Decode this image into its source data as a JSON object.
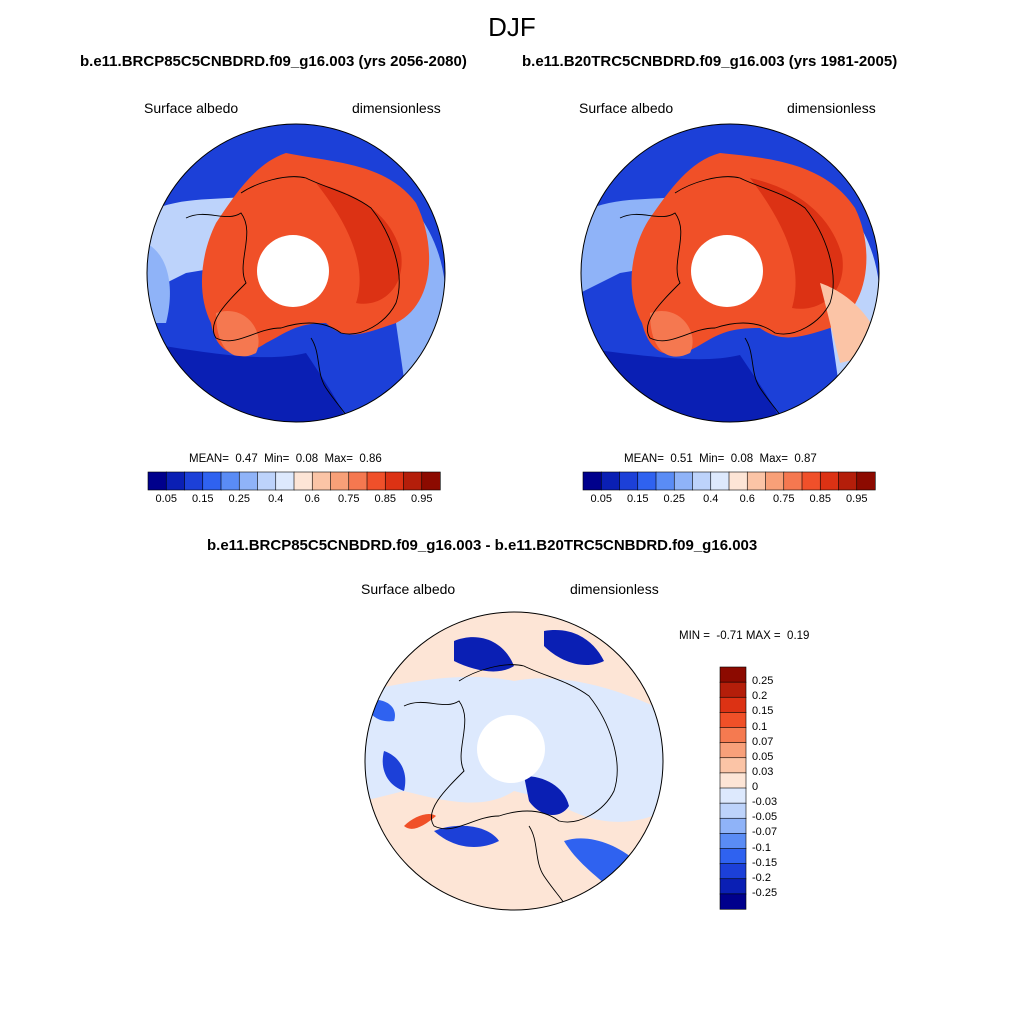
{
  "figure": {
    "season": "DJF"
  },
  "panel_left": {
    "title": "b.e11.BRCP85C5CNBDRD.f09_g16.003 (yrs 2056-2080)",
    "variable": "Surface albedo",
    "units": "dimensionless",
    "stats": {
      "mean_label": "MEAN=",
      "mean": "0.47",
      "min_label": "Min=",
      "min": "0.08",
      "max_label": "Max=",
      "max": "0.86"
    }
  },
  "panel_right": {
    "title": "b.e11.B20TRC5CNBDRD.f09_g16.003 (yrs 1981-2005)",
    "variable": "Surface albedo",
    "units": "dimensionless",
    "stats": {
      "mean_label": "MEAN=",
      "mean": "0.51",
      "min_label": "Min=",
      "min": "0.08",
      "max_label": "Max=",
      "max": "0.87"
    }
  },
  "panel_diff": {
    "title": "b.e11.BRCP85C5CNBDRD.f09_g16.003 - b.e11.B20TRC5CNBDRD.f09_g16.003",
    "variable": "Surface albedo",
    "units": "dimensionless",
    "stats": {
      "min_label": "MIN =",
      "min": "-0.71",
      "max_label": "MAX =",
      "max": "0.19"
    }
  },
  "colorbar_abs": {
    "ticks": [
      "0.05",
      "0.15",
      "0.25",
      "0.4",
      "0.6",
      "0.75",
      "0.85",
      "0.95"
    ],
    "colors": [
      "#00008c",
      "#0a1fb4",
      "#1c40d8",
      "#2f62f0",
      "#5a8cf5",
      "#8fb3f8",
      "#bdd3fb",
      "#dde9fd",
      "#fde5d6",
      "#fbc4a6",
      "#f8a078",
      "#f57850",
      "#f0502a",
      "#dc3214",
      "#b41e0a",
      "#8c0a00"
    ]
  },
  "colorbar_diff": {
    "ticks": [
      "0.25",
      "0.2",
      "0.15",
      "0.1",
      "0.07",
      "0.05",
      "0.03",
      "0",
      "-0.03",
      "-0.05",
      "-0.07",
      "-0.1",
      "-0.15",
      "-0.2",
      "-0.25"
    ],
    "colors": [
      "#8c0a00",
      "#b41e0a",
      "#dc3214",
      "#f05028",
      "#f57a50",
      "#f8a07a",
      "#fbc4a6",
      "#fde5d6",
      "#dde9fd",
      "#bdd3fb",
      "#8fb3f8",
      "#5a8cf5",
      "#2f62f0",
      "#1c40d8",
      "#0a1fb4",
      "#00008c"
    ]
  },
  "chart_data": {
    "type": "heatmap",
    "title": "DJF",
    "maps": [
      {
        "name": "b.e11.BRCP85C5CNBDRD.f09_g16.003 (yrs 2056-2080)",
        "variable": "Surface albedo",
        "units": "dimensionless",
        "mean": 0.47,
        "min": 0.08,
        "max": 0.86,
        "projection": "north polar stereographic"
      },
      {
        "name": "b.e11.B20TRC5CNBDRD.f09_g16.003 (yrs 1981-2005)",
        "variable": "Surface albedo",
        "units": "dimensionless",
        "mean": 0.51,
        "min": 0.08,
        "max": 0.87,
        "projection": "north polar stereographic"
      },
      {
        "name": "b.e11.BRCP85C5CNBDRD.f09_g16.003 - b.e11.B20TRC5CNBDRD.f09_g16.003",
        "variable": "Surface albedo",
        "units": "dimensionless",
        "min": -0.71,
        "max": 0.19,
        "projection": "north polar stereographic"
      }
    ],
    "colorbar_levels_abs": [
      0.05,
      0.1,
      0.15,
      0.2,
      0.25,
      0.3,
      0.4,
      0.5,
      0.6,
      0.65,
      0.7,
      0.75,
      0.8,
      0.85,
      0.9,
      0.95
    ],
    "colorbar_levels_diff": [
      -0.25,
      -0.2,
      -0.15,
      -0.1,
      -0.07,
      -0.05,
      -0.03,
      0,
      0.03,
      0.05,
      0.07,
      0.1,
      0.15,
      0.2,
      0.25
    ]
  }
}
